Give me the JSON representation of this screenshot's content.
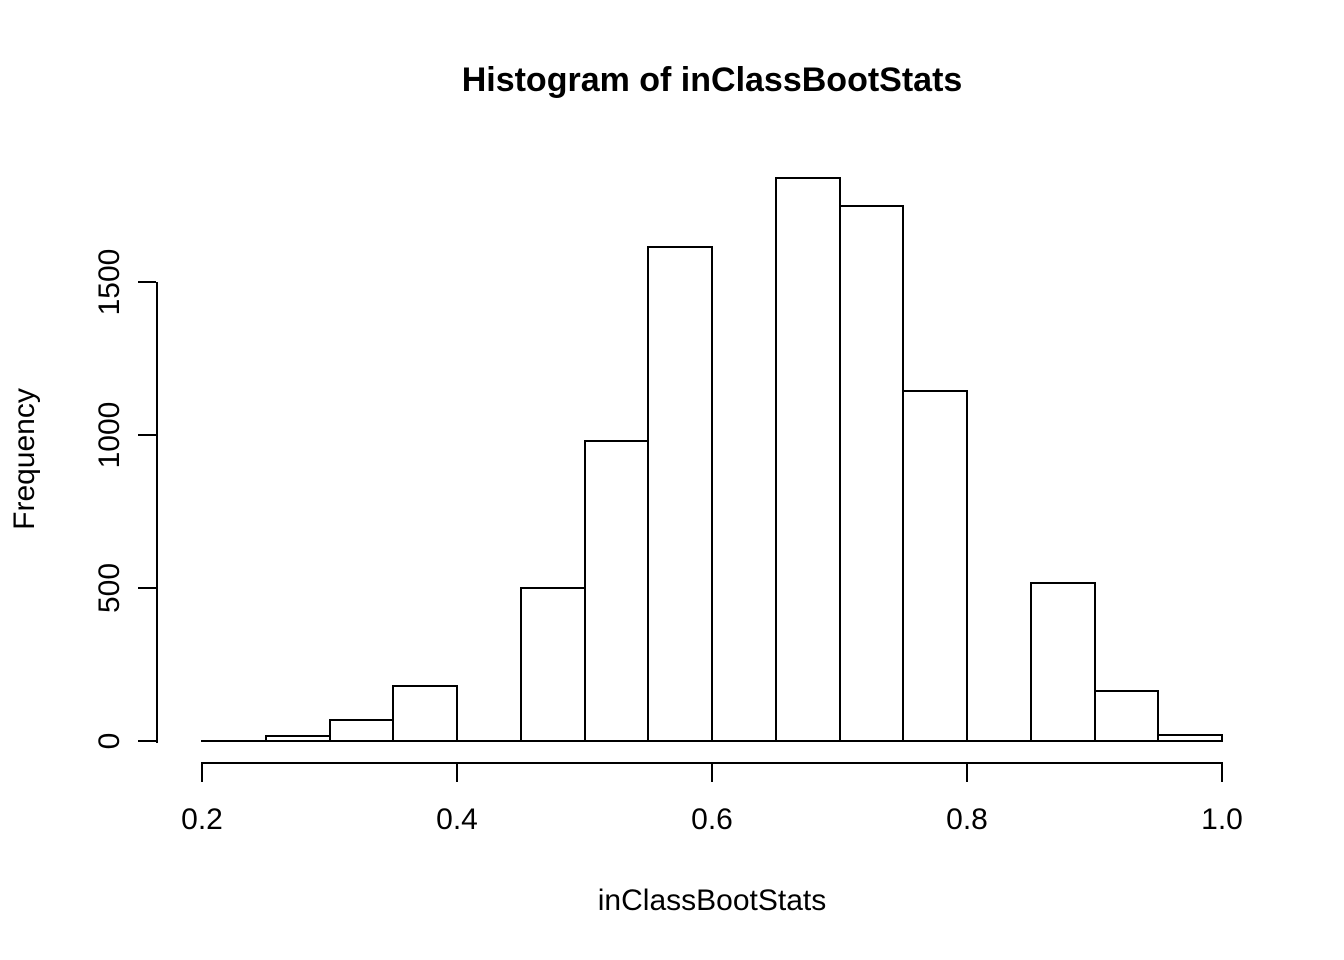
{
  "figure": {
    "title": "Histogram of inClassBootStats",
    "xlabel": "inClassBootStats",
    "ylabel": "Frequency"
  },
  "chart_data": {
    "type": "bar",
    "subtype": "histogram",
    "title": "Histogram of inClassBootStats",
    "xlabel": "inClassBootStats",
    "ylabel": "Frequency",
    "bin_edges": [
      0.2,
      0.25,
      0.3,
      0.35,
      0.4,
      0.45,
      0.5,
      0.55,
      0.6,
      0.65,
      0.7,
      0.75,
      0.8,
      0.85,
      0.9,
      0.95,
      1.0
    ],
    "counts": [
      0,
      15,
      70,
      180,
      0,
      500,
      980,
      1615,
      0,
      1840,
      1750,
      1145,
      0,
      515,
      165,
      20
    ],
    "xlim": [
      0.2,
      1.0
    ],
    "ylim": [
      0,
      1500
    ],
    "x_ticks": [
      "0.2",
      "0.4",
      "0.6",
      "0.8",
      "1.0"
    ],
    "x_tick_values": [
      0.2,
      0.4,
      0.6,
      0.8,
      1.0
    ],
    "y_ticks": [
      "0",
      "500",
      "1000",
      "1500"
    ],
    "y_tick_values": [
      0,
      500,
      1000,
      1500
    ],
    "grid": false,
    "legend": "none",
    "bar_fill": "#ffffff",
    "bar_stroke": "#000000",
    "background": "#ffffff"
  }
}
